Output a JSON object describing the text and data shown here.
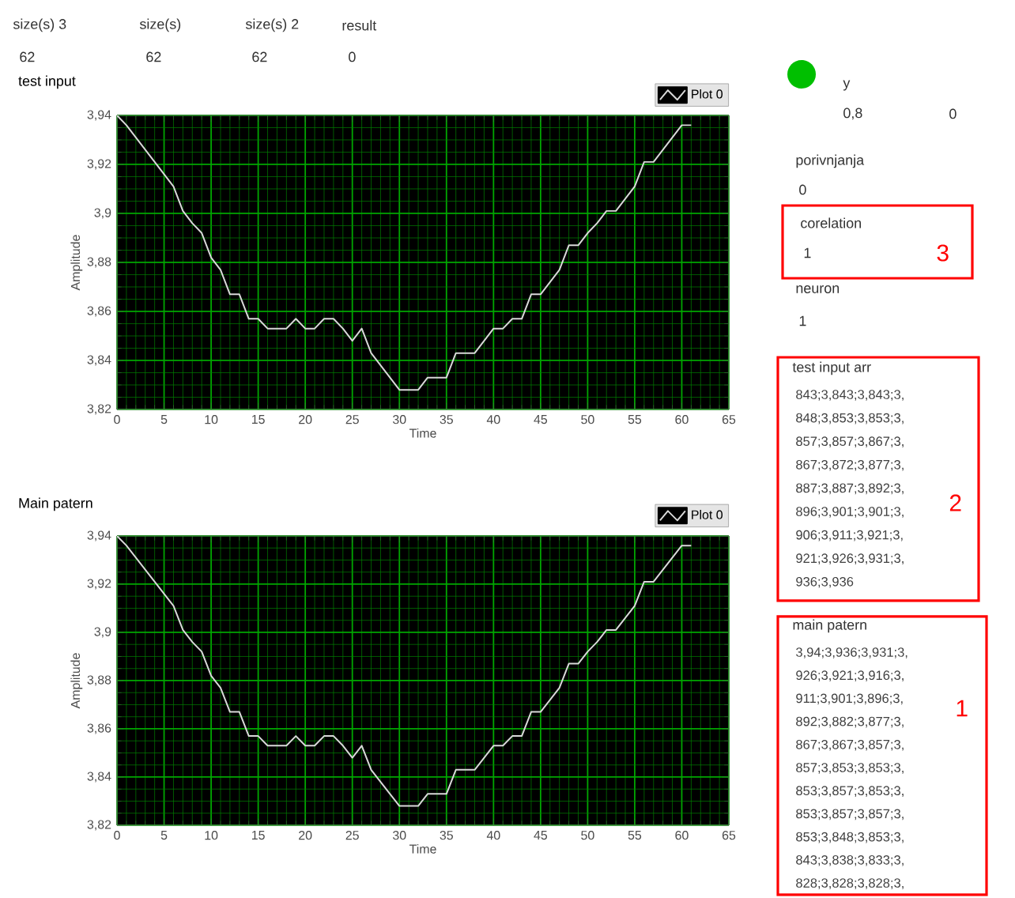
{
  "chart_data": [
    {
      "type": "line",
      "title": "test input",
      "xlabel": "Time",
      "ylabel": "Amplitude",
      "x": [
        0,
        1,
        2,
        3,
        4,
        5,
        6,
        7,
        8,
        9,
        10,
        11,
        12,
        13,
        14,
        15,
        16,
        17,
        18,
        19,
        20,
        21,
        22,
        23,
        24,
        25,
        26,
        27,
        28,
        29,
        30,
        31,
        32,
        33,
        34,
        35,
        36,
        37,
        38,
        39,
        40,
        41,
        42,
        43,
        44,
        45,
        46,
        47,
        48,
        49,
        50,
        51,
        52,
        53,
        54,
        55,
        56,
        57,
        58,
        59,
        60,
        61
      ],
      "series": [
        {
          "name": "Plot 0",
          "color": "#d9d9d9",
          "values": [
            3.94,
            3.936,
            3.931,
            3.926,
            3.921,
            3.916,
            3.911,
            3.901,
            3.896,
            3.892,
            3.882,
            3.877,
            3.867,
            3.867,
            3.857,
            3.857,
            3.853,
            3.853,
            3.853,
            3.857,
            3.853,
            3.853,
            3.857,
            3.857,
            3.853,
            3.848,
            3.853,
            3.843,
            3.838,
            3.833,
            3.828,
            3.828,
            3.828,
            3.833,
            3.833,
            3.833,
            3.843,
            3.843,
            3.843,
            3.848,
            3.853,
            3.853,
            3.857,
            3.857,
            3.867,
            3.867,
            3.872,
            3.877,
            3.887,
            3.887,
            3.892,
            3.896,
            3.901,
            3.901,
            3.906,
            3.911,
            3.921,
            3.921,
            3.926,
            3.931,
            3.936,
            3.936
          ]
        }
      ],
      "xlim": [
        0,
        65
      ],
      "ylim": [
        3.82,
        3.94
      ],
      "xticks": [
        0,
        {
          "value": 1,
          "label": null
        },
        {
          "value": 2,
          "label": null
        },
        {
          "value": 3,
          "label": null
        },
        {
          "value": 4,
          "label": null
        },
        5,
        {
          "value": 6,
          "label": null
        },
        {
          "value": 7,
          "label": null
        },
        {
          "value": 8,
          "label": null
        },
        {
          "value": 9,
          "label": null
        },
        10,
        {
          "value": 11,
          "label": null
        },
        {
          "value": 12,
          "label": null
        },
        {
          "value": 13,
          "label": null
        },
        {
          "value": 14,
          "label": null
        },
        15,
        {
          "value": 16,
          "label": null
        },
        {
          "value": 17,
          "label": null
        },
        {
          "value": 18,
          "label": null
        },
        {
          "value": 19,
          "label": null
        },
        20,
        {
          "value": 21,
          "label": null
        },
        {
          "value": 22,
          "label": null
        },
        {
          "value": 23,
          "label": null
        },
        {
          "value": 24,
          "label": null
        },
        25,
        {
          "value": 26,
          "label": null
        },
        {
          "value": 27,
          "label": null
        },
        {
          "value": 28,
          "label": null
        },
        {
          "value": 29,
          "label": null
        },
        30,
        {
          "value": 31,
          "label": null
        },
        {
          "value": 32,
          "label": null
        },
        {
          "value": 33,
          "label": null
        },
        {
          "value": 34,
          "label": null
        },
        35,
        {
          "value": 36,
          "label": null
        },
        {
          "value": 37,
          "label": null
        },
        {
          "value": 38,
          "label": null
        },
        {
          "value": 39,
          "label": null
        },
        40,
        {
          "value": 41,
          "label": null
        },
        {
          "value": 42,
          "label": null
        },
        {
          "value": 43,
          "label": null
        },
        {
          "value": 44,
          "label": null
        },
        45,
        {
          "value": 46,
          "label": null
        },
        {
          "value": 47,
          "label": null
        },
        {
          "value": 48,
          "label": null
        },
        {
          "value": 49,
          "label": null
        },
        50,
        {
          "value": 51,
          "label": null
        },
        {
          "value": 52,
          "label": null
        },
        {
          "value": 53,
          "label": null
        },
        {
          "value": 54,
          "label": null
        },
        55,
        {
          "value": 56,
          "label": null
        },
        {
          "value": 57,
          "label": null
        },
        {
          "value": 58,
          "label": null
        },
        {
          "value": 59,
          "label": null
        },
        60,
        {
          "value": 61,
          "label": null
        },
        {
          "value": 62,
          "label": null
        },
        {
          "value": 63,
          "label": null
        },
        {
          "value": 64,
          "label": null
        },
        65
      ],
      "yticks": [
        {
          "value": 3.82,
          "label": "3,82"
        },
        {
          "value": 3.825,
          "label": null
        },
        {
          "value": 3.83,
          "label": null
        },
        {
          "value": 3.835,
          "label": null
        },
        {
          "value": 3.84,
          "label": "3,84"
        },
        {
          "value": 3.845,
          "label": null
        },
        {
          "value": 3.85,
          "label": null
        },
        {
          "value": 3.855,
          "label": null
        },
        {
          "value": 3.86,
          "label": "3,86"
        },
        {
          "value": 3.865,
          "label": null
        },
        {
          "value": 3.87,
          "label": null
        },
        {
          "value": 3.875,
          "label": null
        },
        {
          "value": 3.88,
          "label": "3,88"
        },
        {
          "value": 3.885,
          "label": null
        },
        {
          "value": 3.89,
          "label": null
        },
        {
          "value": 3.895,
          "label": null
        },
        {
          "value": 3.9,
          "label": "3,9"
        },
        {
          "value": 3.905,
          "label": null
        },
        {
          "value": 3.91,
          "label": null
        },
        {
          "value": 3.915,
          "label": null
        },
        {
          "value": 3.92,
          "label": "3,92"
        },
        {
          "value": 3.925,
          "label": null
        },
        {
          "value": 3.93,
          "label": null
        },
        {
          "value": 3.935,
          "label": null
        },
        {
          "value": 3.94,
          "label": "3,94"
        }
      ],
      "grid": true,
      "legend": "top right",
      "annotations": [
        "size(s) 3",
        "62",
        "size(s)",
        "62",
        "size(s) 2",
        "62",
        "result",
        "0",
        "y",
        "0,8",
        "0",
        "porivnjanja",
        "0",
        "corelation",
        "1",
        "3",
        "neuron",
        "1",
        "test input arr",
        "843;3,843;3,843;3,",
        "848;3,853;3,853;3,",
        "857;3,857;3,867;3,",
        "867;3,872;3,877;3,",
        "887;3,887;3,892;3,",
        "896;3,901;3,901;3,",
        "906;3,911;3,921;3,",
        "921;3,926;3,931;3,",
        "936;3,936",
        "2",
        "main patern",
        "3,94;3,936;3,931;3,",
        "926;3,921;3,916;3,",
        "911;3,901;3,896;3,",
        "892;3,882;3,877;3,",
        "867;3,867;3,857;3,",
        "857;3,853;3,853;3,",
        "853;3,857;3,853;3,",
        "853;3,857;3,857;3,",
        "853;3,848;3,853;3,",
        "843;3,838;3,833;3,",
        "828;3,828;3,828;3,",
        "1"
      ]
    },
    {
      "type": "line",
      "title": "Main patern",
      "xlabel": "Time",
      "ylabel": "Amplitude",
      "x": [
        0,
        1,
        2,
        3,
        4,
        5,
        6,
        7,
        8,
        9,
        10,
        11,
        12,
        13,
        14,
        15,
        16,
        17,
        18,
        19,
        20,
        21,
        22,
        23,
        24,
        25,
        26,
        27,
        28,
        29,
        30,
        31,
        32,
        33,
        34,
        35,
        36,
        37,
        38,
        39,
        40,
        41,
        42,
        43,
        44,
        45,
        46,
        47,
        48,
        49,
        50,
        51,
        52,
        53,
        54,
        55,
        56,
        57,
        58,
        59,
        60,
        61
      ],
      "series": [
        {
          "name": "Plot 0",
          "color": "#d9d9d9",
          "values": [
            3.94,
            3.936,
            3.931,
            3.926,
            3.921,
            3.916,
            3.911,
            3.901,
            3.896,
            3.892,
            3.882,
            3.877,
            3.867,
            3.867,
            3.857,
            3.857,
            3.853,
            3.853,
            3.853,
            3.857,
            3.853,
            3.853,
            3.857,
            3.857,
            3.853,
            3.848,
            3.853,
            3.843,
            3.838,
            3.833,
            3.828,
            3.828,
            3.828,
            3.833,
            3.833,
            3.833,
            3.843,
            3.843,
            3.843,
            3.848,
            3.853,
            3.853,
            3.857,
            3.857,
            3.867,
            3.867,
            3.872,
            3.877,
            3.887,
            3.887,
            3.892,
            3.896,
            3.901,
            3.901,
            3.906,
            3.911,
            3.921,
            3.921,
            3.926,
            3.931,
            3.936,
            3.936
          ]
        }
      ],
      "xlim": [
        0,
        65
      ],
      "ylim": [
        3.82,
        3.94
      ],
      "xticks": [
        0,
        {
          "value": 1,
          "label": null
        },
        {
          "value": 2,
          "label": null
        },
        {
          "value": 3,
          "label": null
        },
        {
          "value": 4,
          "label": null
        },
        5,
        {
          "value": 6,
          "label": null
        },
        {
          "value": 7,
          "label": null
        },
        {
          "value": 8,
          "label": null
        },
        {
          "value": 9,
          "label": null
        },
        10,
        {
          "value": 11,
          "label": null
        },
        {
          "value": 12,
          "label": null
        },
        {
          "value": 13,
          "label": null
        },
        {
          "value": 14,
          "label": null
        },
        15,
        {
          "value": 16,
          "label": null
        },
        {
          "value": 17,
          "label": null
        },
        {
          "value": 18,
          "label": null
        },
        {
          "value": 19,
          "label": null
        },
        20,
        {
          "value": 21,
          "label": null
        },
        {
          "value": 22,
          "label": null
        },
        {
          "value": 23,
          "label": null
        },
        {
          "value": 24,
          "label": null
        },
        25,
        {
          "value": 26,
          "label": null
        },
        {
          "value": 27,
          "label": null
        },
        {
          "value": 28,
          "label": null
        },
        {
          "value": 29,
          "label": null
        },
        30,
        {
          "value": 31,
          "label": null
        },
        {
          "value": 32,
          "label": null
        },
        {
          "value": 33,
          "label": null
        },
        {
          "value": 34,
          "label": null
        },
        35,
        {
          "value": 36,
          "label": null
        },
        {
          "value": 37,
          "label": null
        },
        {
          "value": 38,
          "label": null
        },
        {
          "value": 39,
          "label": null
        },
        40,
        {
          "value": 41,
          "label": null
        },
        {
          "value": 42,
          "label": null
        },
        {
          "value": 43,
          "label": null
        },
        {
          "value": 44,
          "label": null
        },
        45,
        {
          "value": 46,
          "label": null
        },
        {
          "value": 47,
          "label": null
        },
        {
          "value": 48,
          "label": null
        },
        {
          "value": 49,
          "label": null
        },
        50,
        {
          "value": 51,
          "label": null
        },
        {
          "value": 52,
          "label": null
        },
        {
          "value": 53,
          "label": null
        },
        {
          "value": 54,
          "label": null
        },
        55,
        {
          "value": 56,
          "label": null
        },
        {
          "value": 57,
          "label": null
        },
        {
          "value": 58,
          "label": null
        },
        {
          "value": 59,
          "label": null
        },
        60,
        {
          "value": 61,
          "label": null
        },
        {
          "value": 62,
          "label": null
        },
        {
          "value": 63,
          "label": null
        },
        {
          "value": 64,
          "label": null
        },
        65
      ],
      "yticks": [
        {
          "value": 3.82,
          "label": "3,82"
        },
        {
          "value": 3.825,
          "label": null
        },
        {
          "value": 3.83,
          "label": null
        },
        {
          "value": 3.835,
          "label": null
        },
        {
          "value": 3.84,
          "label": "3,84"
        },
        {
          "value": 3.845,
          "label": null
        },
        {
          "value": 3.85,
          "label": null
        },
        {
          "value": 3.855,
          "label": null
        },
        {
          "value": 3.86,
          "label": "3,86"
        },
        {
          "value": 3.865,
          "label": null
        },
        {
          "value": 3.87,
          "label": null
        },
        {
          "value": 3.875,
          "label": null
        },
        {
          "value": 3.88,
          "label": "3,88"
        },
        {
          "value": 3.885,
          "label": null
        },
        {
          "value": 3.89,
          "label": null
        },
        {
          "value": 3.895,
          "label": null
        },
        {
          "value": 3.9,
          "label": "3,9"
        },
        {
          "value": 3.905,
          "label": null
        },
        {
          "value": 3.91,
          "label": null
        },
        {
          "value": 3.915,
          "label": null
        },
        {
          "value": 3.92,
          "label": "3,92"
        },
        {
          "value": 3.925,
          "label": null
        },
        {
          "value": 3.93,
          "label": null
        },
        {
          "value": 3.935,
          "label": null
        },
        {
          "value": 3.94,
          "label": "3,94"
        }
      ],
      "grid": true,
      "legend": "top right"
    }
  ]
}
